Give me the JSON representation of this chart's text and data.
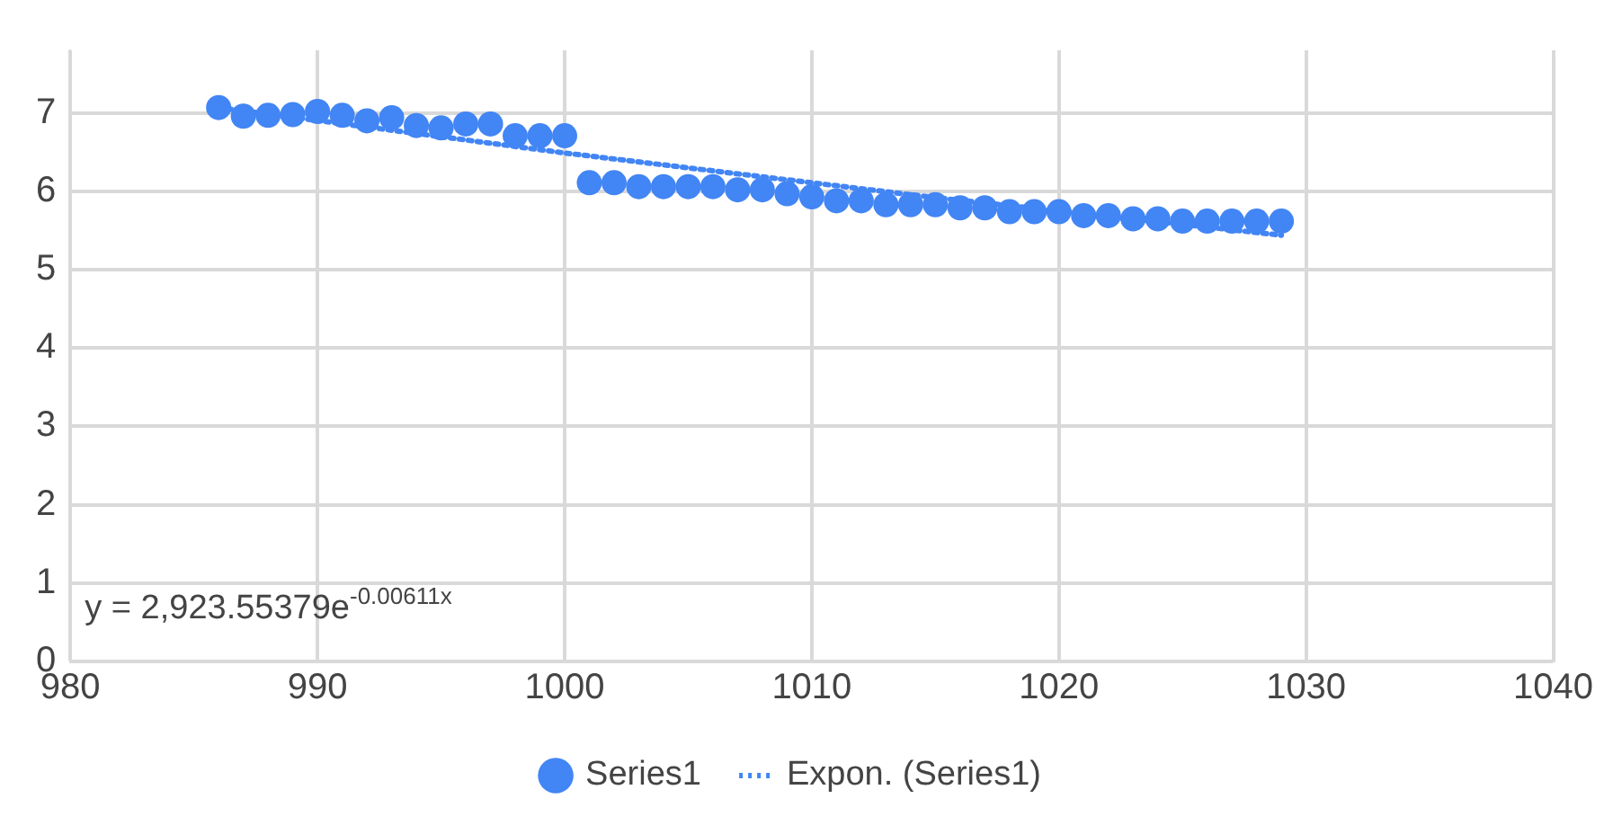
{
  "chart_data": {
    "type": "scatter",
    "annotations": [
      "y = 2,923.55379e$^{-0.00611x}$"
    ],
    "series": [
      {
        "name": "Series1",
        "color": "#4285f4",
        "marker": "circle",
        "x": [
          986,
          987,
          988,
          989,
          990,
          991,
          992,
          993,
          994,
          995,
          996,
          997,
          998,
          999,
          1000,
          1001,
          1002,
          1003,
          1004,
          1005,
          1006,
          1007,
          1008,
          1009,
          1010,
          1011,
          1012,
          1013,
          1014,
          1015,
          1016,
          1017,
          1018,
          1019,
          1020,
          1021,
          1022,
          1023,
          1024,
          1025,
          1026,
          1027,
          1028,
          1029
        ],
        "values": [
          7.07,
          6.96,
          6.97,
          6.98,
          7.02,
          6.97,
          6.9,
          6.94,
          6.84,
          6.81,
          6.86,
          6.86,
          6.71,
          6.71,
          6.71,
          6.11,
          6.11,
          6.06,
          6.06,
          6.06,
          6.06,
          6.02,
          6.02,
          5.97,
          5.93,
          5.88,
          5.88,
          5.83,
          5.83,
          5.83,
          5.79,
          5.79,
          5.74,
          5.74,
          5.74,
          5.69,
          5.69,
          5.65,
          5.65,
          5.62,
          5.62,
          5.62,
          5.62,
          5.62
        ]
      },
      {
        "name": "Expon. (Series1)",
        "color": "#4285f4",
        "type": "line",
        "line_style": "dotted",
        "x": [
          986,
          1000,
          1015,
          1029
        ],
        "values": [
          7.07,
          6.49,
          5.92,
          5.44
        ]
      }
    ],
    "xlim": [
      980,
      1040
    ],
    "xticks": [
      980,
      990,
      1000,
      1010,
      1020,
      1030,
      1040
    ],
    "ylim": [
      0,
      7.8
    ],
    "yticks": [
      0,
      1,
      2,
      3,
      4,
      5,
      6,
      7
    ],
    "grid": true,
    "legend": "bottom"
  }
}
